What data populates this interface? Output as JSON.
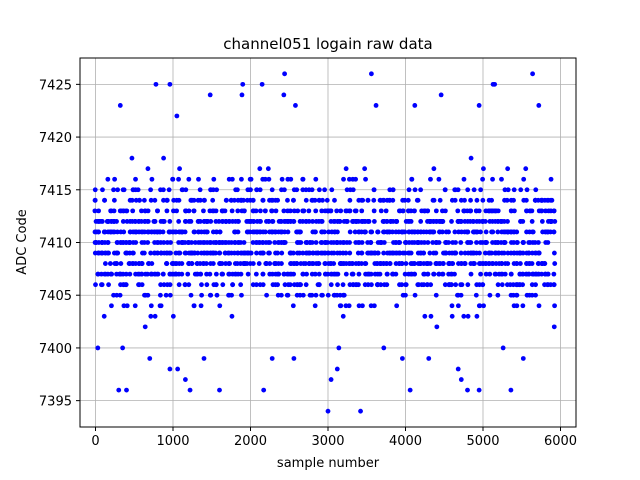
{
  "chart_data": {
    "type": "scatter",
    "title": "channel051 logain raw data",
    "xlabel": "sample number",
    "ylabel": "ADC Code",
    "xlim": [
      -200,
      6200
    ],
    "ylim": [
      7392.5,
      7427.5
    ],
    "xticks": [
      0,
      1000,
      2000,
      3000,
      4000,
      5000,
      6000
    ],
    "yticks": [
      7395,
      7400,
      7405,
      7410,
      7415,
      7420,
      7425
    ],
    "grid": true,
    "marker_color": "#0000ff",
    "series": [
      {
        "points_summary": "about 6000 samples, x from 0 to 5950; integer ADC codes densest between 7403 and 7417, sparse outliers between 7394 and 7426",
        "core_range": [
          7403,
          7417
        ],
        "outliers": [
          [
            30,
            7400
          ],
          [
            300,
            7396
          ],
          [
            400,
            7396
          ],
          [
            320,
            7423
          ],
          [
            780,
            7425
          ],
          [
            960,
            7425
          ],
          [
            1050,
            7422
          ],
          [
            1480,
            7424
          ],
          [
            1600,
            7396
          ],
          [
            1900,
            7425
          ],
          [
            1890,
            7424
          ],
          [
            2150,
            7425
          ],
          [
            2170,
            7396
          ],
          [
            2440,
            7426
          ],
          [
            2430,
            7424
          ],
          [
            2580,
            7423
          ],
          [
            3000,
            7394
          ],
          [
            3040,
            7397
          ],
          [
            3120,
            7398
          ],
          [
            3420,
            7394
          ],
          [
            3560,
            7426
          ],
          [
            3620,
            7423
          ],
          [
            4060,
            7396
          ],
          [
            4120,
            7423
          ],
          [
            4460,
            7424
          ],
          [
            4720,
            7397
          ],
          [
            4800,
            7396
          ],
          [
            4950,
            7396
          ],
          [
            4950,
            7423
          ],
          [
            5130,
            7425
          ],
          [
            5150,
            7425
          ],
          [
            5360,
            7396
          ],
          [
            5640,
            7426
          ],
          [
            5720,
            7423
          ],
          [
            1160,
            7397
          ],
          [
            1220,
            7396
          ],
          [
            960,
            7398
          ],
          [
            1060,
            7398
          ],
          [
            2280,
            7399
          ],
          [
            2560,
            7399
          ],
          [
            3140,
            7400
          ],
          [
            3720,
            7400
          ],
          [
            3960,
            7399
          ],
          [
            4300,
            7399
          ],
          [
            4680,
            7398
          ],
          [
            5260,
            7400
          ],
          [
            5520,
            7399
          ],
          [
            700,
            7399
          ],
          [
            350,
            7400
          ],
          [
            1400,
            7399
          ]
        ]
      }
    ]
  }
}
